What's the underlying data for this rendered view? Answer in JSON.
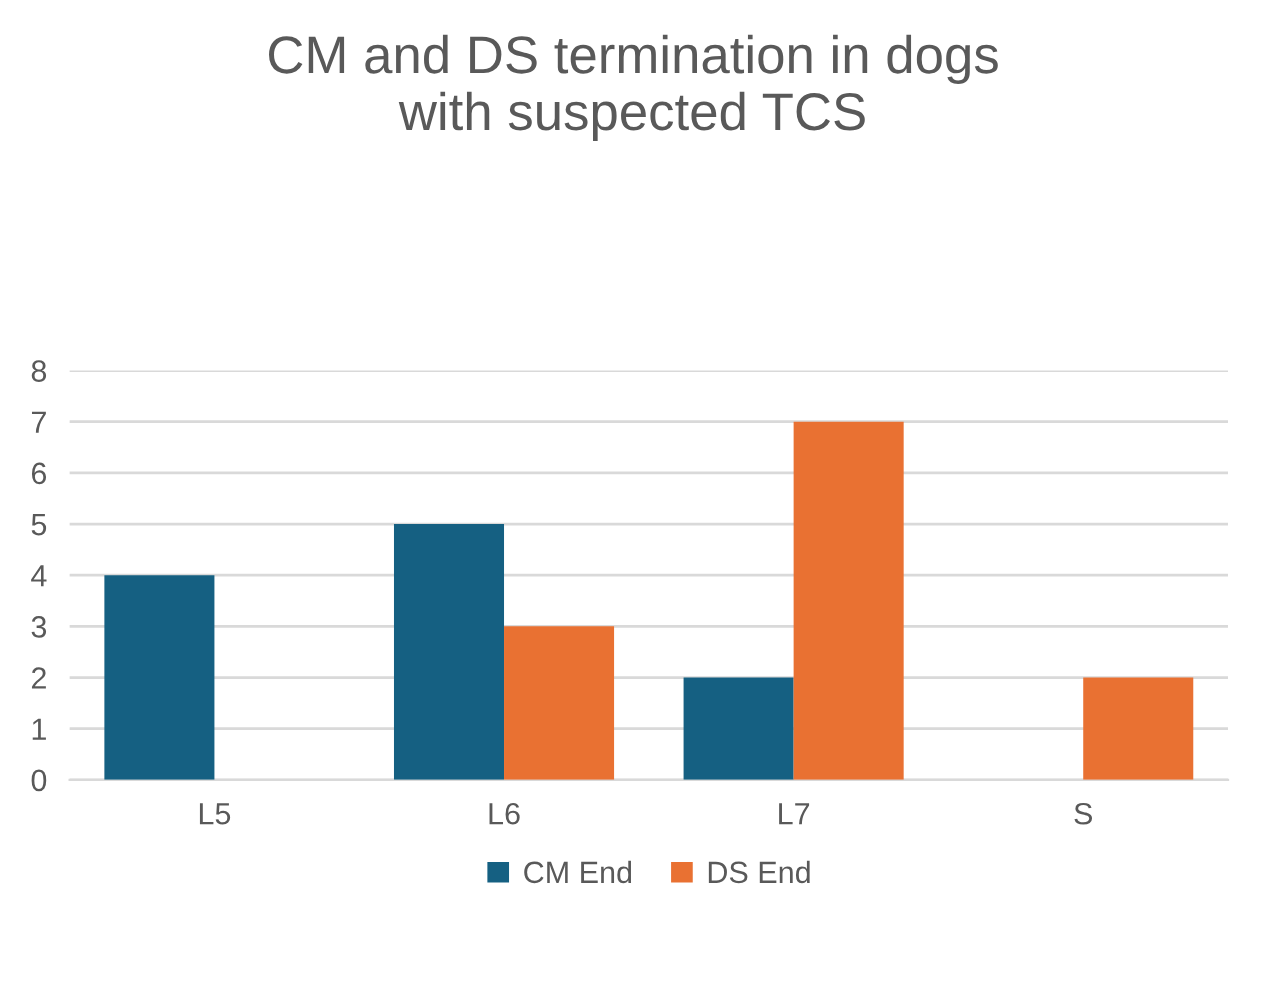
{
  "chart_data": {
    "type": "bar",
    "title": "CM and DS termination in dogs\nwith suspected TCS",
    "categories": [
      "L5",
      "L6",
      "L7",
      "S"
    ],
    "series": [
      {
        "name": "CM End",
        "color": "#156082",
        "values": [
          4,
          5,
          2,
          null
        ]
      },
      {
        "name": "DS End",
        "color": "#e97132",
        "values": [
          null,
          3,
          7,
          2
        ]
      }
    ],
    "ylim": [
      0,
      8
    ],
    "yticks": [
      0,
      1,
      2,
      3,
      4,
      5,
      6,
      7,
      8
    ],
    "grid": "y",
    "legend": "bottom"
  }
}
